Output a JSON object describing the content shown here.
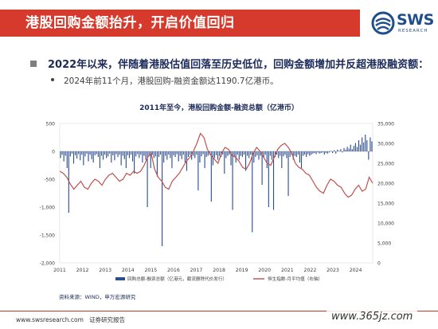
{
  "header": {
    "title": "港股回购金额抬升，开启价值回归",
    "logo_text": "SWS",
    "logo_sub": "RESEARCH"
  },
  "bullets": {
    "main": "2022年以来，伴随着港股估值回落至历史低位，回购金额增加并反超港股融资额：",
    "sub": "2024年前11个月，港股回购-融资金额达1190.7亿港币。"
  },
  "chart_data": {
    "type": "bar+line",
    "title": "2011年至今，港股回购金额-融资总额（亿港币）",
    "x_labels": [
      "2011",
      "2012",
      "2013",
      "2014",
      "2015",
      "2016",
      "2017",
      "2018",
      "2019",
      "2020",
      "2021",
      "2022",
      "2023",
      "2024"
    ],
    "x_range": [
      2011,
      2024.75
    ],
    "left_axis": {
      "range": [
        -2000,
        500
      ],
      "ticks": [
        "500",
        "0",
        "-500",
        "-1,000",
        "-1,500",
        "-2,000"
      ]
    },
    "right_axis": {
      "range": [
        0,
        35000
      ],
      "ticks": [
        "35,000",
        "30,000",
        "25,000",
        "20,000",
        "15,000",
        "10,000",
        "5,000",
        "0"
      ]
    },
    "series": [
      {
        "name": "回购总额-融资总额（亿港元，截流删除代价发行）",
        "type": "bar",
        "axis": "left",
        "color": "#2e4f8f",
        "values": [
          -120,
          -60,
          -180,
          -80,
          -300,
          -1100,
          -90,
          -40,
          -220,
          -70,
          -130,
          -50,
          -160,
          -60,
          -250,
          -90,
          -40,
          -180,
          -60,
          -140,
          -200,
          -70,
          -50,
          -100,
          -300,
          -80,
          -150,
          -60,
          -120,
          -90,
          -40,
          -200,
          -70,
          -160,
          -50,
          -100,
          -60,
          -250,
          -80,
          -140,
          -300,
          -70,
          -120,
          -60,
          -180,
          -400,
          -90,
          -50,
          -120,
          -60,
          -200,
          -80,
          -150,
          -1000,
          -70,
          -300,
          -60,
          -120,
          -90,
          -450,
          -100,
          -60,
          -1700,
          -200,
          -80,
          -150,
          -60,
          -120,
          -300,
          -70,
          -100,
          -50,
          -180,
          -80,
          -140,
          -60,
          -200,
          -350,
          -100,
          -60,
          -150,
          -80,
          -120,
          -60,
          -700,
          -200,
          -90,
          -50,
          -300,
          -100,
          -80,
          -60,
          -900,
          -250,
          -120,
          -70,
          -150,
          -80,
          -100,
          -60,
          -400,
          -120,
          -80,
          -60,
          -250,
          -1050,
          -100,
          -200,
          -60,
          -150,
          -80,
          -100,
          -60,
          -350,
          -80,
          -120,
          -60,
          -1450,
          -200,
          -100,
          -70,
          -150,
          -80,
          -600,
          -120,
          -60,
          -300,
          -1000,
          -80,
          -150,
          -1050,
          -100,
          -60,
          -120,
          -80,
          -300,
          -90,
          -60,
          -120,
          -800,
          -100,
          -60,
          -150,
          -80,
          -100,
          -60,
          -200,
          -300,
          -80,
          -60,
          -100,
          -50,
          -80,
          -60,
          -40,
          -30,
          -50,
          -20,
          -40,
          -30,
          -20,
          -60,
          -30,
          -40,
          -20,
          10,
          -30,
          20,
          -40,
          30,
          10,
          40,
          -20,
          60,
          30,
          80,
          50,
          120,
          40,
          100,
          150,
          80,
          200,
          120,
          250,
          160,
          300,
          200,
          -150,
          250,
          180
        ]
      },
      {
        "name": "恒生指数-月平均值（右轴）",
        "type": "line",
        "axis": "right",
        "color": "#c0504d",
        "values": [
          23000,
          22500,
          21500,
          19800,
          18500,
          19500,
          20500,
          19000,
          18500,
          20000,
          21000,
          20500,
          19500,
          21000,
          22000,
          22500,
          21500,
          20500,
          21000,
          22500,
          22000,
          23000,
          22500,
          23000,
          24500,
          26500,
          27500,
          23500,
          21500,
          20500,
          19000,
          18500,
          20500,
          21500,
          22500,
          24000,
          25500,
          26500,
          28000,
          30000,
          32500,
          31500,
          28500,
          27000,
          26000,
          25000,
          27500,
          29000,
          28500,
          27000,
          26500,
          25500,
          24000,
          23500,
          25000,
          27500,
          29000,
          28000,
          26500,
          25000,
          24500,
          26500,
          28500,
          29500,
          30000,
          29000,
          27500,
          25000,
          24000,
          23500,
          22500,
          22000,
          20500,
          19000,
          18000,
          17500,
          19500,
          21000,
          20500,
          19500,
          19000,
          17500,
          16500,
          17000,
          18500,
          19500,
          18000,
          18500,
          21500,
          20000
        ]
      }
    ],
    "legend": [
      "回购总额-融资总额（亿港元，截流删除代价发行）",
      "恒生指数-月平均值（右轴）"
    ]
  },
  "source": "资料来源：WIND，申万宏源研究",
  "footer": {
    "url": "www.swsresearch.com",
    "label": "证券研究报告"
  },
  "watermark": "www.365jz.com"
}
